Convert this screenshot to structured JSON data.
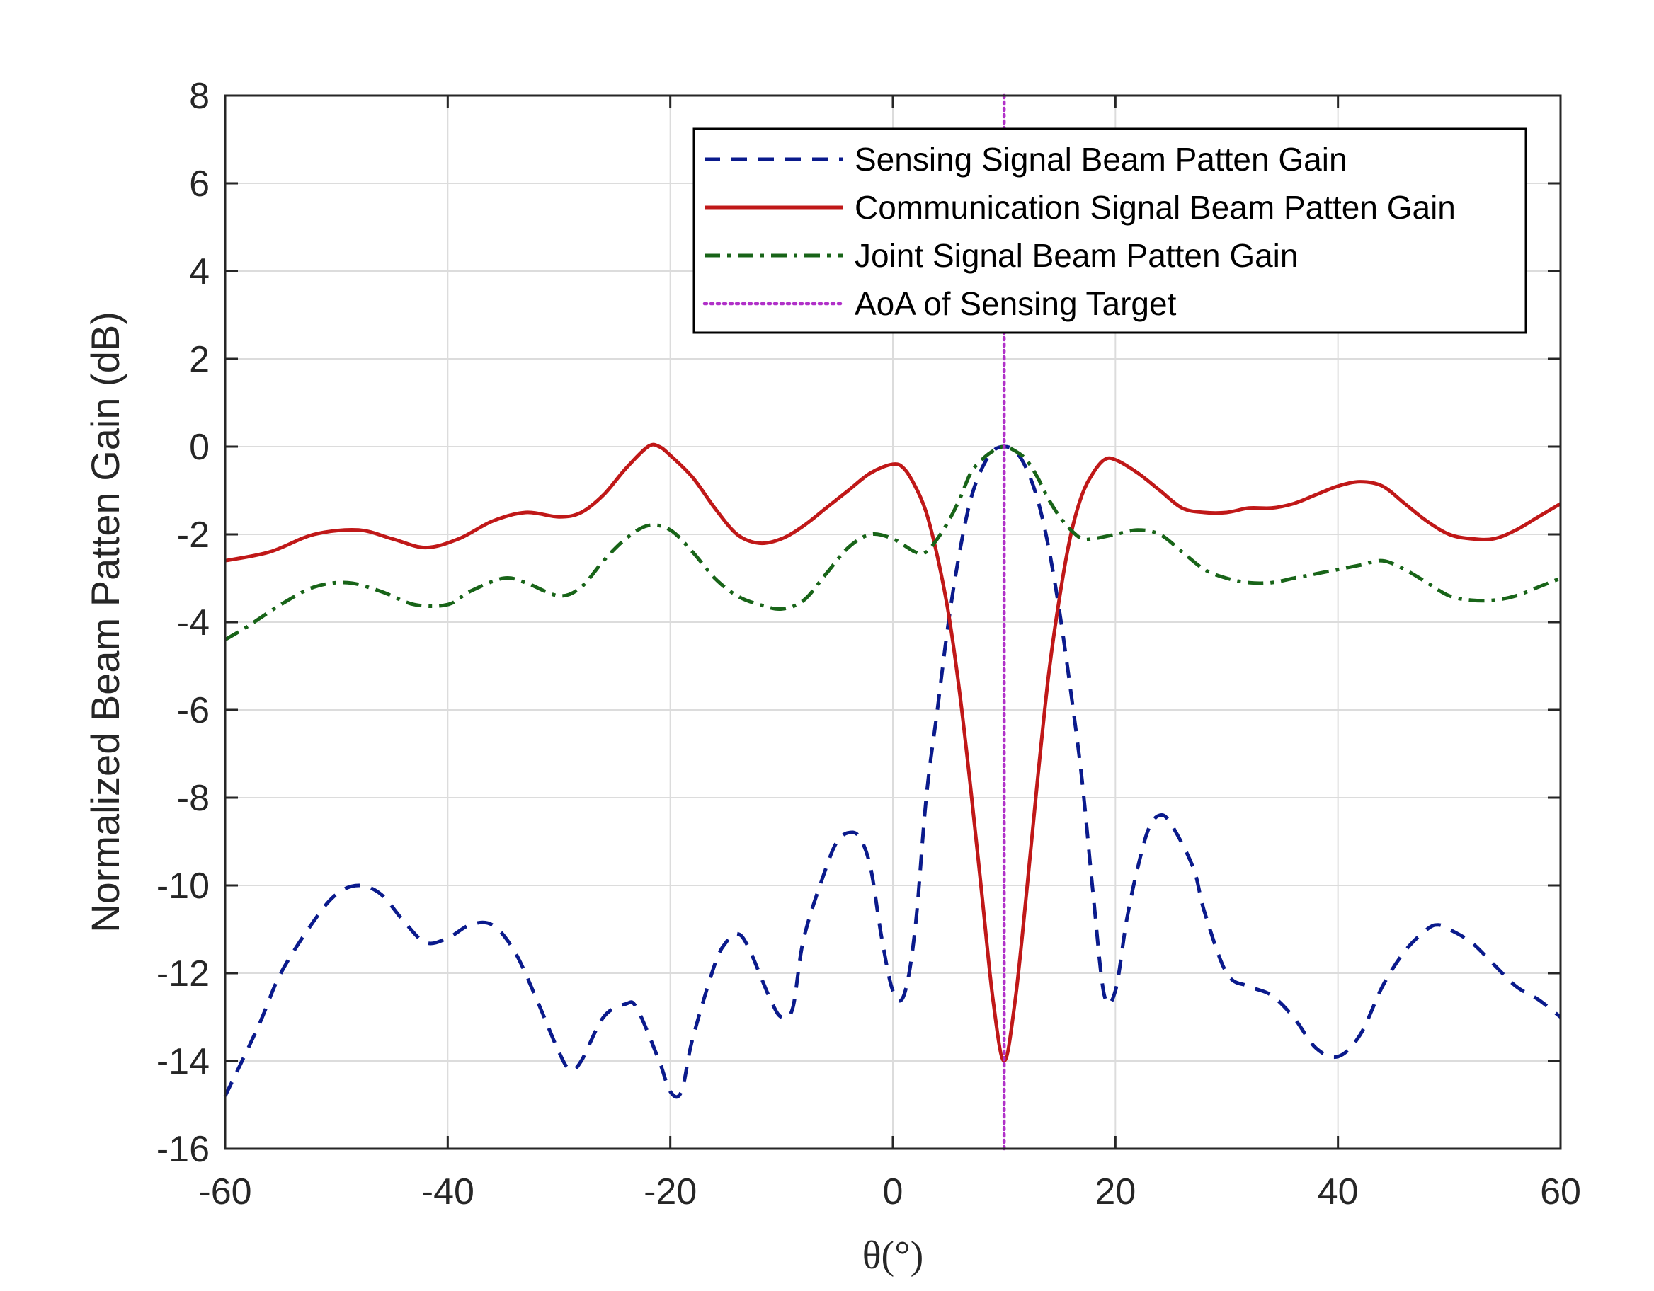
{
  "chart_data": {
    "type": "line",
    "xlabel": "θ(°)",
    "ylabel": "Normalized Beam Patten Gain (dB)",
    "xlim": [
      -60,
      60
    ],
    "ylim": [
      -16,
      8
    ],
    "xticks": [
      -60,
      -40,
      -20,
      0,
      20,
      40,
      60
    ],
    "yticks": [
      8,
      6,
      4,
      2,
      0,
      -2,
      -4,
      -6,
      -8,
      -10,
      -12,
      -14,
      -16
    ],
    "grid": true,
    "legend_position": "top-right",
    "series": [
      {
        "name": "Sensing Signal Beam Patten Gain",
        "style": "dashed",
        "color": "#0a1a8c",
        "points": [
          [
            -60,
            -14.8
          ],
          [
            -57,
            -13.2
          ],
          [
            -55,
            -12.0
          ],
          [
            -52,
            -10.8
          ],
          [
            -50,
            -10.2
          ],
          [
            -48,
            -10.0
          ],
          [
            -46,
            -10.2
          ],
          [
            -44,
            -10.8
          ],
          [
            -42,
            -11.3
          ],
          [
            -40,
            -11.2
          ],
          [
            -38,
            -10.9
          ],
          [
            -36,
            -10.9
          ],
          [
            -34,
            -11.5
          ],
          [
            -32,
            -12.6
          ],
          [
            -30,
            -13.8
          ],
          [
            -29,
            -14.2
          ],
          [
            -28,
            -14.0
          ],
          [
            -26,
            -13.0
          ],
          [
            -24,
            -12.7
          ],
          [
            -23,
            -12.8
          ],
          [
            -21,
            -14.0
          ],
          [
            -20,
            -14.7
          ],
          [
            -19,
            -14.7
          ],
          [
            -18,
            -13.5
          ],
          [
            -16,
            -11.8
          ],
          [
            -15,
            -11.3
          ],
          [
            -14,
            -11.1
          ],
          [
            -13,
            -11.4
          ],
          [
            -11,
            -12.6
          ],
          [
            -10,
            -13.0
          ],
          [
            -9,
            -12.8
          ],
          [
            -8,
            -11.2
          ],
          [
            -6,
            -9.6
          ],
          [
            -5,
            -9.0
          ],
          [
            -4,
            -8.8
          ],
          [
            -3,
            -8.9
          ],
          [
            -2,
            -9.6
          ],
          [
            -1,
            -11.2
          ],
          [
            0,
            -12.4
          ],
          [
            1,
            -12.5
          ],
          [
            2,
            -11.0
          ],
          [
            3,
            -8.0
          ],
          [
            4,
            -6.0
          ],
          [
            5,
            -4.0
          ],
          [
            6,
            -2.4
          ],
          [
            7,
            -1.2
          ],
          [
            8,
            -0.5
          ],
          [
            9,
            -0.1
          ],
          [
            10,
            0.0
          ],
          [
            11,
            -0.1
          ],
          [
            12,
            -0.5
          ],
          [
            13,
            -1.2
          ],
          [
            14,
            -2.3
          ],
          [
            15,
            -3.8
          ],
          [
            16,
            -5.6
          ],
          [
            17,
            -7.6
          ],
          [
            18,
            -10.2
          ],
          [
            19,
            -12.5
          ],
          [
            20,
            -12.4
          ],
          [
            21,
            -10.8
          ],
          [
            22,
            -9.6
          ],
          [
            23,
            -8.7
          ],
          [
            24,
            -8.4
          ],
          [
            25,
            -8.6
          ],
          [
            27,
            -9.6
          ],
          [
            28,
            -10.6
          ],
          [
            30,
            -12.0
          ],
          [
            32,
            -12.3
          ],
          [
            34,
            -12.5
          ],
          [
            36,
            -13.0
          ],
          [
            38,
            -13.7
          ],
          [
            40,
            -13.9
          ],
          [
            42,
            -13.4
          ],
          [
            44,
            -12.3
          ],
          [
            46,
            -11.5
          ],
          [
            48,
            -11.0
          ],
          [
            49,
            -10.9
          ],
          [
            50,
            -11.0
          ],
          [
            52,
            -11.3
          ],
          [
            54,
            -11.8
          ],
          [
            56,
            -12.3
          ],
          [
            58,
            -12.6
          ],
          [
            60,
            -13.0
          ]
        ]
      },
      {
        "name": "Communication Signal Beam Patten Gain",
        "style": "solid",
        "color": "#c01818",
        "points": [
          [
            -60,
            -2.6
          ],
          [
            -56,
            -2.4
          ],
          [
            -52,
            -2.0
          ],
          [
            -48,
            -1.9
          ],
          [
            -45,
            -2.1
          ],
          [
            -42,
            -2.3
          ],
          [
            -39,
            -2.1
          ],
          [
            -36,
            -1.7
          ],
          [
            -33,
            -1.5
          ],
          [
            -30,
            -1.6
          ],
          [
            -28,
            -1.5
          ],
          [
            -26,
            -1.1
          ],
          [
            -24,
            -0.5
          ],
          [
            -22,
            0.0
          ],
          [
            -21,
            0.0
          ],
          [
            -20,
            -0.2
          ],
          [
            -18,
            -0.7
          ],
          [
            -16,
            -1.4
          ],
          [
            -14,
            -2.0
          ],
          [
            -12,
            -2.2
          ],
          [
            -10,
            -2.1
          ],
          [
            -8,
            -1.8
          ],
          [
            -6,
            -1.4
          ],
          [
            -4,
            -1.0
          ],
          [
            -2,
            -0.6
          ],
          [
            0,
            -0.4
          ],
          [
            1,
            -0.5
          ],
          [
            2,
            -0.9
          ],
          [
            3,
            -1.5
          ],
          [
            4,
            -2.5
          ],
          [
            5,
            -3.8
          ],
          [
            6,
            -5.6
          ],
          [
            7,
            -7.8
          ],
          [
            8,
            -10.2
          ],
          [
            9,
            -12.6
          ],
          [
            10,
            -14.0
          ],
          [
            11,
            -12.6
          ],
          [
            12,
            -10.2
          ],
          [
            13,
            -7.6
          ],
          [
            14,
            -5.2
          ],
          [
            15,
            -3.4
          ],
          [
            16,
            -2.0
          ],
          [
            17,
            -1.1
          ],
          [
            18,
            -0.6
          ],
          [
            19,
            -0.3
          ],
          [
            20,
            -0.3
          ],
          [
            22,
            -0.6
          ],
          [
            24,
            -1.0
          ],
          [
            26,
            -1.4
          ],
          [
            28,
            -1.5
          ],
          [
            30,
            -1.5
          ],
          [
            32,
            -1.4
          ],
          [
            34,
            -1.4
          ],
          [
            36,
            -1.3
          ],
          [
            38,
            -1.1
          ],
          [
            40,
            -0.9
          ],
          [
            42,
            -0.8
          ],
          [
            44,
            -0.9
          ],
          [
            46,
            -1.3
          ],
          [
            48,
            -1.7
          ],
          [
            50,
            -2.0
          ],
          [
            52,
            -2.1
          ],
          [
            54,
            -2.1
          ],
          [
            56,
            -1.9
          ],
          [
            58,
            -1.6
          ],
          [
            60,
            -1.3
          ]
        ]
      },
      {
        "name": "Joint Signal Beam Patten Gain",
        "style": "dashdot",
        "color": "#186418",
        "points": [
          [
            -60,
            -4.4
          ],
          [
            -58,
            -4.1
          ],
          [
            -55,
            -3.6
          ],
          [
            -52,
            -3.2
          ],
          [
            -49,
            -3.1
          ],
          [
            -46,
            -3.3
          ],
          [
            -43,
            -3.6
          ],
          [
            -40,
            -3.6
          ],
          [
            -38,
            -3.3
          ],
          [
            -35,
            -3.0
          ],
          [
            -33,
            -3.1
          ],
          [
            -30,
            -3.4
          ],
          [
            -28,
            -3.2
          ],
          [
            -26,
            -2.6
          ],
          [
            -24,
            -2.1
          ],
          [
            -22,
            -1.8
          ],
          [
            -20,
            -1.9
          ],
          [
            -18,
            -2.4
          ],
          [
            -16,
            -3.0
          ],
          [
            -14,
            -3.4
          ],
          [
            -12,
            -3.6
          ],
          [
            -10,
            -3.7
          ],
          [
            -8,
            -3.5
          ],
          [
            -6,
            -2.9
          ],
          [
            -4,
            -2.3
          ],
          [
            -2,
            -2.0
          ],
          [
            0,
            -2.1
          ],
          [
            2,
            -2.4
          ],
          [
            3,
            -2.4
          ],
          [
            4,
            -2.1
          ],
          [
            5,
            -1.7
          ],
          [
            6,
            -1.2
          ],
          [
            7,
            -0.6
          ],
          [
            8,
            -0.3
          ],
          [
            9,
            -0.1
          ],
          [
            10,
            0.0
          ],
          [
            11,
            -0.1
          ],
          [
            12,
            -0.3
          ],
          [
            13,
            -0.7
          ],
          [
            14,
            -1.2
          ],
          [
            15,
            -1.6
          ],
          [
            16,
            -1.9
          ],
          [
            17,
            -2.1
          ],
          [
            18,
            -2.1
          ],
          [
            20,
            -2.0
          ],
          [
            22,
            -1.9
          ],
          [
            24,
            -2.0
          ],
          [
            26,
            -2.4
          ],
          [
            28,
            -2.8
          ],
          [
            30,
            -3.0
          ],
          [
            32,
            -3.1
          ],
          [
            34,
            -3.1
          ],
          [
            36,
            -3.0
          ],
          [
            38,
            -2.9
          ],
          [
            40,
            -2.8
          ],
          [
            42,
            -2.7
          ],
          [
            44,
            -2.6
          ],
          [
            46,
            -2.8
          ],
          [
            48,
            -3.1
          ],
          [
            50,
            -3.4
          ],
          [
            52,
            -3.5
          ],
          [
            54,
            -3.5
          ],
          [
            56,
            -3.4
          ],
          [
            58,
            -3.2
          ],
          [
            60,
            -3.0
          ]
        ]
      },
      {
        "name": "AoA of Sensing Target",
        "style": "dotted",
        "color": "#b030c8",
        "points": [
          [
            10,
            -16
          ],
          [
            10,
            8
          ]
        ]
      }
    ]
  }
}
